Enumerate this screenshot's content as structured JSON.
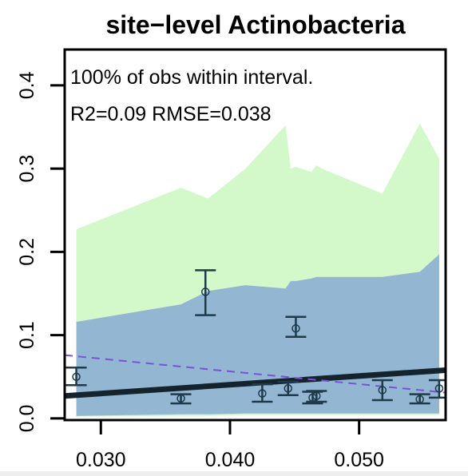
{
  "chart_data": {
    "type": "scatter",
    "title": "site−level Actinobacteria",
    "xlabel": "",
    "ylabel": "",
    "xlim": [
      0.0272,
      0.0567
    ],
    "ylim": [
      -0.002,
      0.443
    ],
    "x_ticks": [
      0.03,
      0.04,
      0.05
    ],
    "x_tick_labels": [
      "0.030",
      "0.040",
      "0.050"
    ],
    "y_ticks": [
      0.0,
      0.1,
      0.2,
      0.3,
      0.4
    ],
    "y_tick_labels": [
      "0.0",
      "0.1",
      "0.2",
      "0.3",
      "0.4"
    ],
    "annotations": [
      "100% of obs within interval.",
      "R2=0.09 RMSE=0.038"
    ],
    "grid": false,
    "colors": {
      "outer_band": "#d3f8c9",
      "inner_band": "#93b6d2",
      "error_bar": "#1f3a4a",
      "point": "#1f3a4a",
      "fit_line": "#14232c",
      "one_to_one_line": "#7a52d9"
    },
    "outer_interval": {
      "x": [
        0.0281,
        0.0362,
        0.0383,
        0.0412,
        0.0443,
        0.0447,
        0.0451,
        0.0463,
        0.0467,
        0.0471,
        0.0518,
        0.0547,
        0.0562
      ],
      "upper": [
        0.227,
        0.277,
        0.264,
        0.3,
        0.352,
        0.3,
        0.302,
        0.296,
        0.304,
        0.3,
        0.27,
        0.354,
        0.312
      ],
      "lower": [
        0.002,
        0.003,
        0.003,
        0.004,
        0.004,
        0.004,
        0.004,
        0.004,
        0.004,
        0.004,
        0.004,
        0.004,
        0.004
      ]
    },
    "inner_interval": {
      "x": [
        0.0281,
        0.0362,
        0.0383,
        0.0412,
        0.0443,
        0.0447,
        0.0451,
        0.0463,
        0.0467,
        0.0471,
        0.0518,
        0.0547,
        0.0562
      ],
      "upper": [
        0.116,
        0.137,
        0.153,
        0.16,
        0.156,
        0.165,
        0.165,
        0.168,
        0.17,
        0.17,
        0.17,
        0.176,
        0.197
      ],
      "lower": [
        0.003,
        0.005,
        0.005,
        0.006,
        0.006,
        0.006,
        0.006,
        0.006,
        0.006,
        0.006,
        0.006,
        0.006,
        0.006
      ]
    },
    "observations": [
      {
        "x": 0.0281,
        "y": 0.05,
        "low": 0.04,
        "high": 0.061
      },
      {
        "x": 0.0362,
        "y": 0.024,
        "low": 0.018,
        "high": 0.029
      },
      {
        "x": 0.0381,
        "y": 0.152,
        "low": 0.124,
        "high": 0.178
      },
      {
        "x": 0.0425,
        "y": 0.03,
        "low": 0.02,
        "high": 0.041
      },
      {
        "x": 0.0445,
        "y": 0.036,
        "low": 0.028,
        "high": 0.044
      },
      {
        "x": 0.0451,
        "y": 0.108,
        "low": 0.098,
        "high": 0.122
      },
      {
        "x": 0.0464,
        "y": 0.025,
        "low": 0.018,
        "high": 0.032
      },
      {
        "x": 0.0467,
        "y": 0.027,
        "low": 0.02,
        "high": 0.033
      },
      {
        "x": 0.0518,
        "y": 0.034,
        "low": 0.022,
        "high": 0.046
      },
      {
        "x": 0.0547,
        "y": 0.023,
        "low": 0.018,
        "high": 0.029
      },
      {
        "x": 0.0562,
        "y": 0.036,
        "low": 0.025,
        "high": 0.046
      }
    ],
    "fit_line": {
      "x": [
        0.0272,
        0.0567
      ],
      "y": [
        0.027,
        0.058
      ]
    },
    "one_to_one_line": {
      "x": [
        0.0272,
        0.0567
      ],
      "y": [
        0.076,
        0.031
      ]
    }
  }
}
